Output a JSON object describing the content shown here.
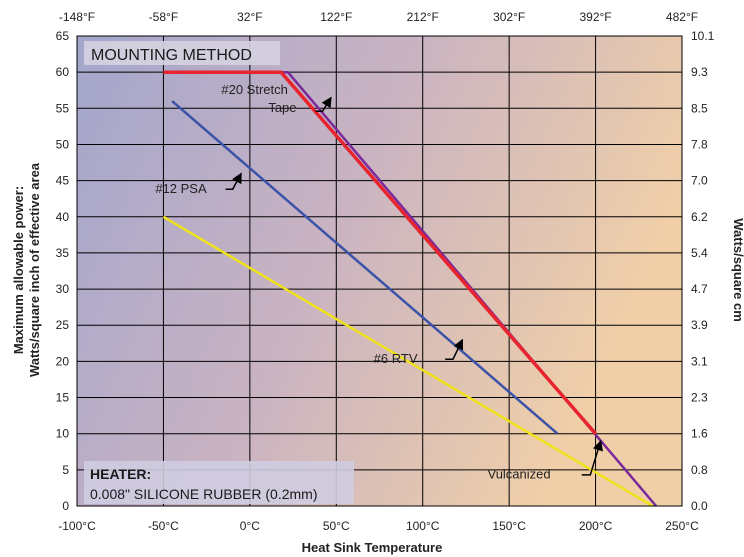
{
  "chart_data": {
    "type": "line",
    "xlabel": "Heat Sink Temperature",
    "ylabel": [
      "Maximum allowable power:",
      "Watts/square inch of effective area"
    ],
    "y2label": "Watts/square cm",
    "xlim": [
      -100,
      250
    ],
    "ylim": [
      0,
      65
    ],
    "x_ticks": [
      -100,
      -50,
      0,
      50,
      100,
      150,
      200,
      250
    ],
    "x_tick_labels": [
      "-100°C",
      "-50°C",
      "0°C",
      "50°C",
      "100°C",
      "150°C",
      "200°C",
      "250°C"
    ],
    "x2_ticks": [
      -100,
      -50,
      0,
      50,
      100,
      150,
      200,
      250
    ],
    "x2_tick_labels": [
      "-148°F",
      "-58°F",
      "32°F",
      "122°F",
      "212°F",
      "302°F",
      "392°F",
      "482°F"
    ],
    "y_ticks": [
      0,
      5,
      10,
      15,
      20,
      25,
      30,
      35,
      40,
      45,
      50,
      55,
      60,
      65
    ],
    "y_tick_labels": [
      "0",
      "5",
      "10",
      "15",
      "20",
      "25",
      "30",
      "35",
      "40",
      "45",
      "50",
      "55",
      "60",
      "65"
    ],
    "y2_tick_labels": [
      "0.0",
      "0.8",
      "1.6",
      "2.3",
      "3.1",
      "3.9",
      "4.7",
      "5.4",
      "6.2",
      "7.0",
      "7.8",
      "8.5",
      "9.3",
      "10.1"
    ],
    "grid": true,
    "series": [
      {
        "name": "Vulcanized",
        "color": "#7a2a9a",
        "x": [
          -50,
          22,
          235
        ],
        "y": [
          60,
          60,
          0
        ]
      },
      {
        "name": "#20 Stretch Tape",
        "color": "#e8242e",
        "x": [
          -50,
          18,
          200
        ],
        "y": [
          60,
          60,
          10
        ]
      },
      {
        "name": "#12 PSA",
        "color": "#3a52a8",
        "x": [
          -45,
          178
        ],
        "y": [
          56,
          10
        ]
      },
      {
        "name": "#6 RTV",
        "color": "#f0e21a",
        "x": [
          -50,
          233
        ],
        "y": [
          40,
          0
        ]
      }
    ],
    "annotations": [
      {
        "text": "#20 Stretch",
        "x": 22,
        "y": 57
      },
      {
        "text": "Tape",
        "x": 27,
        "y": 54.5
      },
      {
        "text": "#12 PSA",
        "x": -25,
        "y": 43.3
      },
      {
        "text": "#6 RTV",
        "x": 97,
        "y": 19.8
      },
      {
        "text": "Vulcanized",
        "x": 174,
        "y": 3.8
      }
    ],
    "title_box": "MOUNTING METHOD",
    "heater_label": "HEATER:",
    "heater_desc": "0.008\" SILICONE RUBBER (0.2mm)"
  }
}
